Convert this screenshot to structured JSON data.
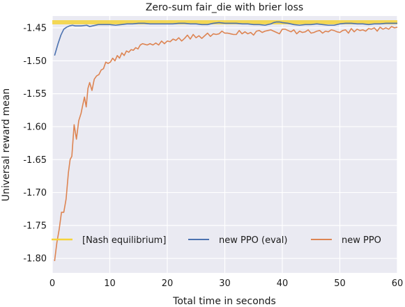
{
  "chart_data": {
    "type": "line",
    "title": "Zero-sum fair_die with brier loss",
    "xlabel": "Total time in seconds",
    "ylabel": "Universal reward mean",
    "xlim": [
      0,
      60
    ],
    "ylim": [
      -1.822,
      -1.432
    ],
    "xticks": [
      0,
      10,
      20,
      30,
      40,
      50,
      60
    ],
    "xtick_labels": [
      "0",
      "10",
      "20",
      "30",
      "40",
      "50",
      "60"
    ],
    "yticks": [
      -1.8,
      -1.75,
      -1.7,
      -1.65,
      -1.6,
      -1.55,
      -1.5,
      -1.45
    ],
    "ytick_labels": [
      "-1.80",
      "-1.75",
      "-1.70",
      "-1.65",
      "-1.60",
      "-1.55",
      "-1.50",
      "-1.45"
    ],
    "grid": true,
    "legend_position": "lower center",
    "series": [
      {
        "name": "[Nash equilibrium]",
        "color": "#f5d33a",
        "style": "band",
        "x": [
          0,
          60
        ],
        "y": [
          -1.4415,
          -1.4415
        ]
      },
      {
        "name": "new PPO (eval)",
        "color": "#4c72b0",
        "x": [
          0.4,
          1.0,
          1.5,
          2.0,
          2.5,
          3.0,
          3.5,
          4.0,
          5.0,
          6.0,
          6.5,
          7.0,
          8.0,
          9.0,
          10.0,
          11.0,
          12.0,
          13.0,
          14.0,
          15.0,
          16.0,
          17.0,
          18.0,
          19.0,
          20.0,
          21.0,
          22.0,
          23.0,
          24.0,
          25.0,
          26.0,
          27.0,
          28.0,
          29.0,
          30.0,
          31.0,
          32.0,
          33.0,
          34.0,
          35.0,
          36.0,
          37.0,
          38.0,
          38.5,
          39.0,
          39.5,
          40.0,
          41.0,
          42.0,
          43.0,
          44.0,
          45.0,
          46.0,
          47.0,
          48.0,
          49.0,
          50.0,
          51.0,
          52.0,
          53.0,
          54.0,
          55.0,
          56.0,
          57.0,
          58.0,
          59.0,
          60.0
        ],
        "y": [
          -1.492,
          -1.474,
          -1.461,
          -1.452,
          -1.449,
          -1.447,
          -1.446,
          -1.447,
          -1.447,
          -1.446,
          -1.448,
          -1.447,
          -1.445,
          -1.445,
          -1.445,
          -1.446,
          -1.445,
          -1.444,
          -1.444,
          -1.443,
          -1.443,
          -1.444,
          -1.444,
          -1.444,
          -1.444,
          -1.444,
          -1.443,
          -1.443,
          -1.444,
          -1.444,
          -1.445,
          -1.445,
          -1.443,
          -1.442,
          -1.443,
          -1.443,
          -1.443,
          -1.444,
          -1.444,
          -1.445,
          -1.445,
          -1.446,
          -1.444,
          -1.442,
          -1.441,
          -1.441,
          -1.442,
          -1.443,
          -1.445,
          -1.446,
          -1.445,
          -1.445,
          -1.444,
          -1.445,
          -1.446,
          -1.446,
          -1.444,
          -1.443,
          -1.443,
          -1.444,
          -1.444,
          -1.445,
          -1.444,
          -1.444,
          -1.443,
          -1.443,
          -1.443
        ]
      },
      {
        "name": "new PPO",
        "color": "#dd8452",
        "x": [
          0.4,
          0.8,
          1.2,
          1.6,
          2.0,
          2.4,
          2.8,
          3.1,
          3.4,
          3.8,
          4.2,
          4.6,
          5.0,
          5.3,
          5.6,
          5.9,
          6.2,
          6.5,
          6.9,
          7.3,
          7.7,
          8.1,
          8.5,
          8.9,
          9.3,
          9.7,
          10.1,
          10.5,
          10.9,
          11.3,
          11.7,
          12.1,
          12.5,
          12.9,
          13.3,
          13.7,
          14.1,
          14.5,
          14.9,
          15.3,
          15.7,
          16.1,
          16.5,
          17.0,
          17.5,
          18.0,
          18.5,
          19.0,
          19.5,
          20.0,
          20.5,
          21.0,
          21.5,
          22.0,
          22.5,
          23.0,
          23.5,
          24.0,
          24.5,
          25.0,
          25.5,
          26.0,
          26.5,
          27.0,
          27.5,
          28.0,
          28.5,
          29.0,
          29.5,
          30.0,
          30.5,
          31.0,
          31.5,
          32.0,
          32.5,
          33.0,
          33.5,
          34.0,
          34.5,
          35.0,
          35.5,
          36.0,
          36.5,
          37.0,
          37.5,
          38.0,
          38.5,
          39.0,
          39.5,
          40.0,
          40.5,
          41.0,
          41.5,
          42.0,
          42.5,
          43.0,
          43.5,
          44.0,
          44.5,
          45.0,
          45.5,
          46.0,
          46.5,
          47.0,
          47.5,
          48.0,
          48.5,
          49.0,
          49.5,
          50.0,
          50.5,
          51.0,
          51.5,
          52.0,
          52.5,
          53.0,
          53.5,
          54.0,
          54.5,
          55.0,
          55.5,
          56.0,
          56.5,
          57.0,
          57.5,
          58.0,
          58.5,
          59.0,
          59.5,
          60.0
        ],
        "y": [
          -1.804,
          -1.776,
          -1.756,
          -1.73,
          -1.73,
          -1.71,
          -1.67,
          -1.65,
          -1.645,
          -1.597,
          -1.619,
          -1.591,
          -1.58,
          -1.567,
          -1.555,
          -1.57,
          -1.542,
          -1.533,
          -1.545,
          -1.528,
          -1.523,
          -1.521,
          -1.514,
          -1.512,
          -1.502,
          -1.504,
          -1.502,
          -1.496,
          -1.5,
          -1.492,
          -1.496,
          -1.488,
          -1.492,
          -1.485,
          -1.487,
          -1.483,
          -1.484,
          -1.48,
          -1.482,
          -1.476,
          -1.474,
          -1.475,
          -1.476,
          -1.474,
          -1.476,
          -1.473,
          -1.476,
          -1.47,
          -1.474,
          -1.47,
          -1.471,
          -1.467,
          -1.469,
          -1.465,
          -1.47,
          -1.466,
          -1.461,
          -1.467,
          -1.46,
          -1.465,
          -1.462,
          -1.466,
          -1.462,
          -1.458,
          -1.463,
          -1.459,
          -1.46,
          -1.459,
          -1.455,
          -1.458,
          -1.458,
          -1.459,
          -1.46,
          -1.46,
          -1.454,
          -1.459,
          -1.456,
          -1.459,
          -1.457,
          -1.461,
          -1.455,
          -1.454,
          -1.457,
          -1.455,
          -1.454,
          -1.453,
          -1.455,
          -1.457,
          -1.459,
          -1.452,
          -1.452,
          -1.454,
          -1.456,
          -1.453,
          -1.459,
          -1.455,
          -1.457,
          -1.456,
          -1.453,
          -1.458,
          -1.457,
          -1.455,
          -1.454,
          -1.458,
          -1.455,
          -1.456,
          -1.453,
          -1.454,
          -1.456,
          -1.457,
          -1.454,
          -1.453,
          -1.458,
          -1.451,
          -1.456,
          -1.452,
          -1.454,
          -1.453,
          -1.455,
          -1.451,
          -1.452,
          -1.45,
          -1.455,
          -1.449,
          -1.452,
          -1.45,
          -1.452,
          -1.448,
          -1.45,
          -1.449
        ]
      }
    ]
  }
}
